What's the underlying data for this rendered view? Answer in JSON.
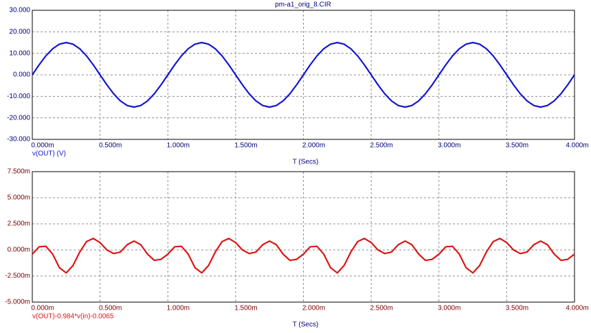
{
  "chart_data": [
    {
      "type": "line",
      "title": "pm-a1_orig_8.CIR",
      "xlabel": "T (Secs)",
      "grid": true,
      "x": [
        0,
        5e-05,
        0.0001,
        0.00015,
        0.0002,
        0.00025,
        0.0003,
        0.00035,
        0.0004,
        0.00045,
        0.0005,
        0.00055,
        0.0006,
        0.00065,
        0.0007,
        0.00075,
        0.0008,
        0.00085,
        0.0009,
        0.00095,
        0.001,
        0.00105,
        0.0011,
        0.00115,
        0.0012,
        0.00125,
        0.0013,
        0.00135,
        0.0014,
        0.00145,
        0.0015,
        0.00155,
        0.0016,
        0.00165,
        0.0017,
        0.00175,
        0.0018,
        0.00185,
        0.0019,
        0.00195,
        0.002,
        0.00205,
        0.0021,
        0.00215,
        0.0022,
        0.00225,
        0.0023,
        0.00235,
        0.0024,
        0.00245,
        0.0025,
        0.00255,
        0.0026,
        0.00265,
        0.0027,
        0.00275,
        0.0028,
        0.00285,
        0.0029,
        0.00295,
        0.003,
        0.00305,
        0.0031,
        0.00315,
        0.0032,
        0.00325,
        0.0033,
        0.00335,
        0.0034,
        0.00345,
        0.0035,
        0.00355,
        0.0036,
        0.00365,
        0.0037,
        0.00375,
        0.0038,
        0.00385,
        0.0039,
        0.00395,
        0.004
      ],
      "series": [
        {
          "name": "v(OUT) (V)",
          "color": "#1414d2",
          "values": [
            0,
            4.635,
            8.817,
            12.135,
            14.266,
            15,
            14.266,
            12.135,
            8.817,
            4.635,
            0,
            -4.635,
            -8.817,
            -12.135,
            -14.266,
            -15,
            -14.266,
            -12.135,
            -8.817,
            -4.635,
            0,
            4.635,
            8.817,
            12.135,
            14.266,
            15,
            14.266,
            12.135,
            8.817,
            4.635,
            0,
            -4.635,
            -8.817,
            -12.135,
            -14.266,
            -15,
            -14.266,
            -12.135,
            -8.817,
            -4.635,
            0,
            4.635,
            8.817,
            12.135,
            14.266,
            15,
            14.266,
            12.135,
            8.817,
            4.635,
            0,
            -4.635,
            -8.817,
            -12.135,
            -14.266,
            -15,
            -14.266,
            -12.135,
            -8.817,
            -4.635,
            0,
            4.635,
            8.817,
            12.135,
            14.266,
            15,
            14.266,
            12.135,
            8.817,
            4.635,
            0,
            -4.635,
            -8.817,
            -12.135,
            -14.266,
            -15,
            -14.266,
            -12.135,
            -8.817,
            -4.635,
            0
          ]
        }
      ],
      "xlim": [
        0,
        0.004
      ],
      "xticks": [
        {
          "value": 0,
          "label": "0.000m"
        },
        {
          "value": 0.0005,
          "label": "0.500m"
        },
        {
          "value": 0.001,
          "label": "1.000m"
        },
        {
          "value": 0.0015,
          "label": "1.500m"
        },
        {
          "value": 0.002,
          "label": "2.000m"
        },
        {
          "value": 0.0025,
          "label": "2.500m"
        },
        {
          "value": 0.003,
          "label": "3.000m"
        },
        {
          "value": 0.0035,
          "label": "3.500m"
        },
        {
          "value": 0.004,
          "label": "4.000m"
        }
      ],
      "ylim": [
        -30,
        30
      ],
      "yticks": [
        {
          "value": 30,
          "label": "30.000"
        },
        {
          "value": 20,
          "label": "20.000"
        },
        {
          "value": 10,
          "label": "10.000"
        },
        {
          "value": 0,
          "label": "0.000"
        },
        {
          "value": -10,
          "label": "-10.000"
        },
        {
          "value": -20,
          "label": "-20.000"
        },
        {
          "value": -30,
          "label": "-30.000"
        }
      ]
    },
    {
      "type": "line",
      "xlabel": "T (Secs)",
      "grid": true,
      "x": [
        0,
        5e-05,
        0.0001,
        0.00015,
        0.0002,
        0.00025,
        0.0003,
        0.00035,
        0.0004,
        0.00045,
        0.0005,
        0.00055,
        0.0006,
        0.00065,
        0.0007,
        0.00075,
        0.0008,
        0.00085,
        0.0009,
        0.00095,
        0.001,
        0.00105,
        0.0011,
        0.00115,
        0.0012,
        0.00125,
        0.0013,
        0.00135,
        0.0014,
        0.00145,
        0.0015,
        0.00155,
        0.0016,
        0.00165,
        0.0017,
        0.00175,
        0.0018,
        0.00185,
        0.0019,
        0.00195,
        0.002,
        0.00205,
        0.0021,
        0.00215,
        0.0022,
        0.00225,
        0.0023,
        0.00235,
        0.0024,
        0.00245,
        0.0025,
        0.00255,
        0.0026,
        0.00265,
        0.0027,
        0.00275,
        0.0028,
        0.00285,
        0.0029,
        0.00295,
        0.003,
        0.00305,
        0.0031,
        0.00315,
        0.0032,
        0.00325,
        0.0033,
        0.00335,
        0.0034,
        0.00345,
        0.0035,
        0.00355,
        0.0036,
        0.00365,
        0.0037,
        0.00375,
        0.0038,
        0.00385,
        0.0039,
        0.00395,
        0.004
      ],
      "series": [
        {
          "name": "v(OUT)-0.984*v(in)-0.0065",
          "color": "#dc1414",
          "values": [
            -0.0004,
            0.0003,
            0.00035,
            -0.0004,
            -0.0017,
            -0.0022,
            -0.0015,
            -0.0002,
            0.0008,
            0.0011,
            0.0007,
            0,
            -0.00035,
            -0.0002,
            0.0005,
            0.00085,
            0.0005,
            -0.0004,
            -0.001,
            -0.0009,
            -0.0004,
            0.0003,
            0.00035,
            -0.0004,
            -0.0017,
            -0.0022,
            -0.0015,
            -0.0002,
            0.0008,
            0.0011,
            0.0007,
            0,
            -0.00035,
            -0.0002,
            0.0005,
            0.00085,
            0.0005,
            -0.0004,
            -0.001,
            -0.0009,
            -0.0004,
            0.0003,
            0.00035,
            -0.0004,
            -0.0017,
            -0.0022,
            -0.0015,
            -0.0002,
            0.0008,
            0.0011,
            0.0007,
            0,
            -0.00035,
            -0.0002,
            0.0005,
            0.00085,
            0.0005,
            -0.0004,
            -0.001,
            -0.0009,
            -0.0004,
            0.0003,
            0.00035,
            -0.0004,
            -0.0017,
            -0.0022,
            -0.0015,
            -0.0002,
            0.0008,
            0.0011,
            0.0007,
            0,
            -0.00035,
            -0.0002,
            0.0005,
            0.00085,
            0.0005,
            -0.0004,
            -0.001,
            -0.0009,
            -0.0004
          ]
        }
      ],
      "xlim": [
        0,
        0.004
      ],
      "xticks": [
        {
          "value": 0,
          "label": "0.000m"
        },
        {
          "value": 0.0005,
          "label": "0.500m"
        },
        {
          "value": 0.001,
          "label": "1.000m"
        },
        {
          "value": 0.0015,
          "label": "1.500m"
        },
        {
          "value": 0.002,
          "label": "2.000m"
        },
        {
          "value": 0.0025,
          "label": "2.500m"
        },
        {
          "value": 0.003,
          "label": "3.000m"
        },
        {
          "value": 0.0035,
          "label": "3.500m"
        },
        {
          "value": 0.004,
          "label": "4.000m"
        }
      ],
      "ylim": [
        -0.005,
        0.0075
      ],
      "yticks": [
        {
          "value": 0.0075,
          "label": "7.500m"
        },
        {
          "value": 0.005,
          "label": "5.000m"
        },
        {
          "value": 0.0025,
          "label": "2.500m"
        },
        {
          "value": 0,
          "label": "0.000m"
        },
        {
          "value": -0.0025,
          "label": "-2.500m"
        },
        {
          "value": -0.005,
          "label": "-5.000m"
        }
      ]
    }
  ]
}
